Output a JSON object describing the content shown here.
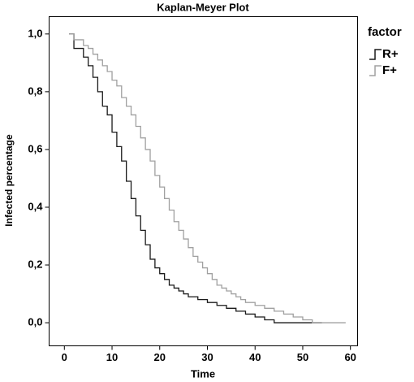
{
  "chart_data": {
    "type": "step",
    "title": "Kaplan-Meyer Plot",
    "x_label": "Time",
    "y_label": "Infected percentage",
    "legend_title": "factor",
    "legend_position": "right",
    "xlim": [
      -3.2,
      61.5
    ],
    "ylim": [
      -0.08,
      1.06
    ],
    "xticks": [
      0,
      10,
      20,
      30,
      40,
      50,
      60
    ],
    "yticks": [
      {
        "value": 0,
        "label": "0,0"
      },
      {
        "value": 0.2,
        "label": "0,2"
      },
      {
        "value": 0.4,
        "label": "0,4"
      },
      {
        "value": 0.6,
        "label": "0,6"
      },
      {
        "value": 0.8,
        "label": "0,8"
      },
      {
        "value": 1,
        "label": "1,0"
      }
    ],
    "series": [
      {
        "name": "R+",
        "color": "#1a1a1a",
        "x": [
          1,
          2,
          4,
          5,
          6,
          7,
          8,
          9,
          10,
          11,
          12,
          13,
          14,
          15,
          16,
          17,
          18,
          19,
          20,
          21,
          22,
          23,
          24,
          25,
          26,
          28,
          30,
          32,
          34,
          36,
          38,
          40,
          42,
          44,
          54
        ],
        "values": [
          1,
          0.95,
          0.92,
          0.89,
          0.85,
          0.8,
          0.75,
          0.72,
          0.66,
          0.61,
          0.56,
          0.49,
          0.43,
          0.37,
          0.32,
          0.27,
          0.22,
          0.19,
          0.17,
          0.15,
          0.13,
          0.12,
          0.11,
          0.1,
          0.09,
          0.08,
          0.07,
          0.06,
          0.05,
          0.04,
          0.03,
          0.02,
          0.01,
          0,
          0
        ]
      },
      {
        "name": "F+",
        "color": "#a0a0a0",
        "x": [
          1,
          2,
          4,
          5,
          6,
          7,
          8,
          9,
          10,
          11,
          12,
          13,
          14,
          15,
          16,
          17,
          18,
          19,
          20,
          21,
          22,
          23,
          24,
          25,
          26,
          27,
          28,
          29,
          30,
          31,
          32,
          33,
          34,
          35,
          36,
          37,
          38,
          40,
          42,
          44,
          46,
          48,
          50,
          52,
          59
        ],
        "values": [
          1,
          0.98,
          0.96,
          0.95,
          0.93,
          0.91,
          0.89,
          0.87,
          0.84,
          0.82,
          0.78,
          0.75,
          0.72,
          0.68,
          0.64,
          0.6,
          0.56,
          0.51,
          0.47,
          0.43,
          0.39,
          0.35,
          0.32,
          0.29,
          0.26,
          0.23,
          0.21,
          0.19,
          0.17,
          0.15,
          0.13,
          0.12,
          0.11,
          0.1,
          0.09,
          0.08,
          0.07,
          0.06,
          0.05,
          0.04,
          0.03,
          0.02,
          0.01,
          0,
          0
        ]
      }
    ]
  }
}
